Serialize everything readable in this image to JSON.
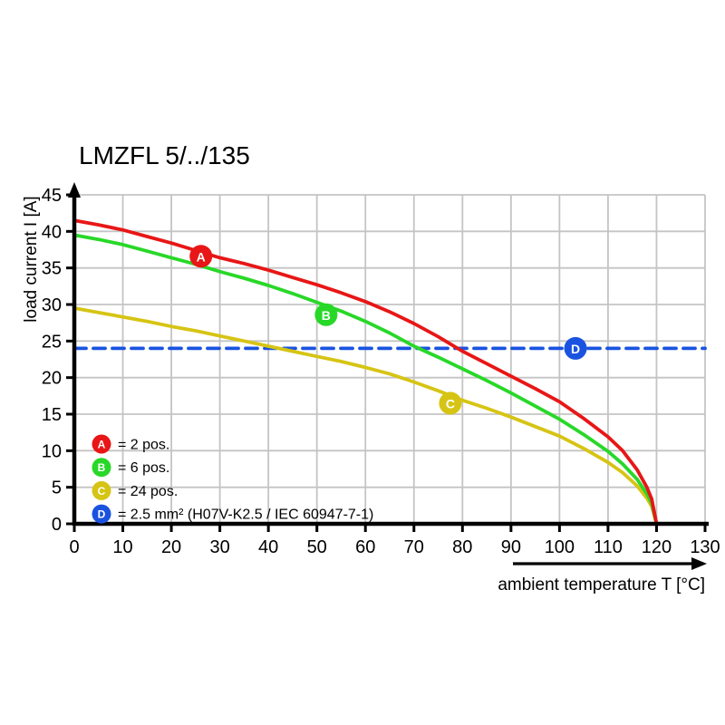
{
  "title": "LMZFL 5/../135",
  "chart_data": {
    "type": "line",
    "title": "LMZFL 5/../135",
    "xlabel": "ambient temperature T [°C]",
    "ylabel": "load current I [A]",
    "xlim": [
      0,
      130
    ],
    "ylim": [
      0,
      45
    ],
    "x_ticks": [
      0,
      10,
      20,
      30,
      40,
      50,
      60,
      70,
      80,
      90,
      100,
      110,
      120,
      130
    ],
    "y_ticks": [
      0,
      5,
      10,
      15,
      20,
      25,
      30,
      35,
      40,
      45
    ],
    "grid": true,
    "grid_color": "#c4c4c4",
    "axis_color": "#000000",
    "legend_position": "bottom-left-inside",
    "series": [
      {
        "id": "A",
        "name": "2 pos.",
        "color": "#e81616",
        "dash": null,
        "points": [
          [
            0,
            41.5
          ],
          [
            5,
            40.9
          ],
          [
            10,
            40.2
          ],
          [
            15,
            39.3
          ],
          [
            20,
            38.4
          ],
          [
            25,
            37.4
          ],
          [
            30,
            36.4
          ],
          [
            35,
            35.6
          ],
          [
            40,
            34.7
          ],
          [
            45,
            33.7
          ],
          [
            50,
            32.7
          ],
          [
            55,
            31.6
          ],
          [
            60,
            30.4
          ],
          [
            65,
            29.0
          ],
          [
            70,
            27.4
          ],
          [
            75,
            25.6
          ],
          [
            80,
            23.6
          ],
          [
            85,
            21.9
          ],
          [
            90,
            20.2
          ],
          [
            95,
            18.5
          ],
          [
            100,
            16.7
          ],
          [
            105,
            14.4
          ],
          [
            110,
            11.9
          ],
          [
            113,
            10.0
          ],
          [
            116,
            7.4
          ],
          [
            118,
            5.0
          ],
          [
            119,
            3.4
          ],
          [
            120,
            0
          ]
        ],
        "marker": {
          "label": "A",
          "t": 26.1,
          "i": 36.6
        }
      },
      {
        "id": "B",
        "name": "6 pos.",
        "color": "#28d828",
        "dash": null,
        "points": [
          [
            0,
            39.5
          ],
          [
            5,
            38.9
          ],
          [
            10,
            38.2
          ],
          [
            15,
            37.3
          ],
          [
            20,
            36.4
          ],
          [
            25,
            35.5
          ],
          [
            30,
            34.5
          ],
          [
            35,
            33.6
          ],
          [
            40,
            32.6
          ],
          [
            45,
            31.5
          ],
          [
            50,
            30.3
          ],
          [
            55,
            29.1
          ],
          [
            60,
            27.7
          ],
          [
            65,
            26.1
          ],
          [
            70,
            24.3
          ],
          [
            75,
            22.8
          ],
          [
            80,
            21.2
          ],
          [
            85,
            19.6
          ],
          [
            90,
            17.9
          ],
          [
            95,
            16.1
          ],
          [
            100,
            14.3
          ],
          [
            105,
            12.2
          ],
          [
            110,
            9.9
          ],
          [
            113,
            8.2
          ],
          [
            116,
            6.1
          ],
          [
            118,
            4.1
          ],
          [
            119,
            2.8
          ],
          [
            120,
            0
          ]
        ],
        "marker": {
          "label": "B",
          "t": 51.9,
          "i": 28.6
        }
      },
      {
        "id": "C",
        "name": "24 pos.",
        "color": "#d6c414",
        "dash": null,
        "points": [
          [
            0,
            29.5
          ],
          [
            5,
            28.9
          ],
          [
            10,
            28.3
          ],
          [
            15,
            27.7
          ],
          [
            20,
            27.0
          ],
          [
            25,
            26.4
          ],
          [
            30,
            25.7
          ],
          [
            35,
            25.0
          ],
          [
            40,
            24.3
          ],
          [
            45,
            23.6
          ],
          [
            50,
            22.9
          ],
          [
            55,
            22.2
          ],
          [
            60,
            21.4
          ],
          [
            65,
            20.5
          ],
          [
            70,
            19.4
          ],
          [
            75,
            18.2
          ],
          [
            80,
            16.9
          ],
          [
            85,
            15.8
          ],
          [
            90,
            14.6
          ],
          [
            95,
            13.3
          ],
          [
            100,
            12.0
          ],
          [
            105,
            10.3
          ],
          [
            110,
            8.4
          ],
          [
            113,
            7.0
          ],
          [
            116,
            5.2
          ],
          [
            118,
            3.5
          ],
          [
            119,
            2.4
          ],
          [
            120,
            0
          ]
        ],
        "marker": {
          "label": "C",
          "t": 77.5,
          "i": 16.5
        }
      },
      {
        "id": "D",
        "name": "2.5 mm² (H07V-K2.5 / IEC 60947-7-1)",
        "color": "#1a53e0",
        "dash": "13 8",
        "points": [
          [
            0,
            24
          ],
          [
            130,
            24
          ]
        ],
        "marker": {
          "label": "D",
          "t": 103.3,
          "i": 24
        }
      }
    ],
    "legend": [
      {
        "id": "A",
        "color": "#e81616",
        "label": "= 2 pos."
      },
      {
        "id": "B",
        "color": "#28d828",
        "label": "= 6 pos."
      },
      {
        "id": "C",
        "color": "#d6c414",
        "label": "= 24 pos."
      },
      {
        "id": "D",
        "color": "#1a53e0",
        "label": "= 2.5 mm² (H07V-K2.5 / IEC 60947-7-1)"
      }
    ]
  }
}
